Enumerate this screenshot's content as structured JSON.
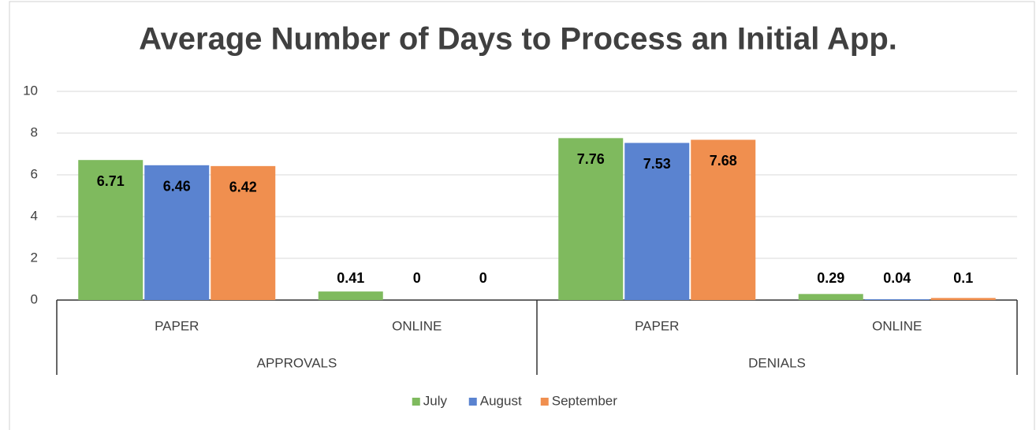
{
  "chart_data": {
    "type": "bar",
    "title": "Average Number of Days to Process an Initial App.",
    "categories": [
      "PAPER",
      "ONLINE",
      "PAPER",
      "ONLINE"
    ],
    "groups": [
      "APPROVALS",
      "DENIALS"
    ],
    "series": [
      {
        "name": "July",
        "color": "#7fba5e",
        "values": [
          6.71,
          0.41,
          7.76,
          0.29
        ]
      },
      {
        "name": "August",
        "color": "#5a83d0",
        "values": [
          6.46,
          0,
          7.53,
          0.04
        ]
      },
      {
        "name": "September",
        "color": "#f08f4f",
        "values": [
          6.42,
          0,
          7.68,
          0.1
        ]
      }
    ],
    "ylim": [
      0,
      10
    ],
    "yticks": [
      0,
      2,
      4,
      6,
      8,
      10
    ],
    "grid": true,
    "legend": "bottom"
  }
}
